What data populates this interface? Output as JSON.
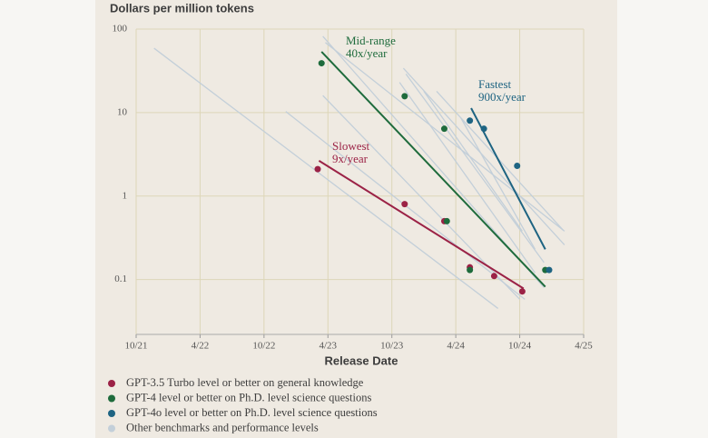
{
  "chart_data": {
    "type": "scatter",
    "title": "Dollars per million tokens",
    "x_label": "Release Date",
    "log_y": true,
    "grid": true,
    "xlim": [
      2021.75,
      2025.25
    ],
    "xticks": [
      {
        "value": 2021.75,
        "label": "10/21"
      },
      {
        "value": 2022.25,
        "label": "4/22"
      },
      {
        "value": 2022.75,
        "label": "10/22"
      },
      {
        "value": 2023.25,
        "label": "4/23"
      },
      {
        "value": 2023.75,
        "label": "10/23"
      },
      {
        "value": 2024.25,
        "label": "4/24"
      },
      {
        "value": 2024.75,
        "label": "10/24"
      },
      {
        "value": 2025.25,
        "label": "4/25"
      }
    ],
    "ylim": [
      0.022,
      100
    ],
    "yticks": [
      100,
      10,
      1,
      0.1
    ],
    "series": [
      {
        "name": "GPT-3.5 Turbo level or better on general knowledge",
        "color": "#9b2246",
        "x": [
          2023.17,
          2023.85,
          2024.16,
          2024.36,
          2024.55,
          2024.77
        ],
        "values": [
          2.1,
          0.8,
          0.5,
          0.14,
          0.11,
          0.072
        ],
        "trend": {
          "x": [
            2023.18,
            2024.78
          ],
          "values": [
            2.65,
            0.078
          ]
        },
        "label": [
          "Slowest",
          "9x/year"
        ]
      },
      {
        "name": "GPT-4 level or better on Ph.D. level science questions",
        "color": "#1e6b3c",
        "x": [
          2023.2,
          2023.85,
          2024.16,
          2024.18,
          2024.36,
          2024.95
        ],
        "values": [
          39,
          15.7,
          6.4,
          0.5,
          0.13,
          0.13
        ],
        "trend": {
          "x": [
            2023.2,
            2024.95
          ],
          "values": [
            53.5,
            0.082
          ]
        },
        "label": [
          "Mid-range",
          "40x/year"
        ]
      },
      {
        "name": "GPT-4o level or better on Ph.D. level science questions",
        "color": "#1e6482",
        "x": [
          2024.36,
          2024.47,
          2024.73,
          2024.98
        ],
        "values": [
          8,
          6.4,
          2.3,
          0.13
        ],
        "trend": {
          "x": [
            2024.37,
            2024.95
          ],
          "values": [
            11.3,
            0.23
          ]
        },
        "label": [
          "Fastest",
          "900x/year"
        ]
      },
      {
        "name": "Other benchmarks and performance levels",
        "color": "#c3cfd9",
        "lines": [
          {
            "x": [
              2021.89,
              2024.58
            ],
            "values": [
              59,
              0.045
            ]
          },
          {
            "x": [
              2022.92,
              2024.79
            ],
            "values": [
              10.3,
              0.058
            ]
          },
          {
            "x": [
              2023.21,
              2024.75
            ],
            "values": [
              16,
              0.058
            ]
          },
          {
            "x": [
              2023.21,
              2024.94
            ],
            "values": [
              82,
              0.08
            ]
          },
          {
            "x": [
              2023.23,
              2025.1
            ],
            "values": [
              69,
              0.38
            ]
          },
          {
            "x": [
              2023.84,
              2025.1
            ],
            "values": [
              34,
              0.26
            ]
          },
          {
            "x": [
              2023.86,
              2024.94
            ],
            "values": [
              29,
              0.16
            ]
          },
          {
            "x": [
              2023.81,
              2024.87
            ],
            "values": [
              23,
              0.12
            ]
          },
          {
            "x": [
              2024.0,
              2024.77
            ],
            "values": [
              18,
              0.38
            ]
          },
          {
            "x": [
              2024.1,
              2025.09
            ],
            "values": [
              18,
              0.39
            ]
          },
          {
            "x": [
              2024.29,
              2024.87
            ],
            "values": [
              8.6,
              0.23
            ]
          }
        ]
      }
    ]
  }
}
